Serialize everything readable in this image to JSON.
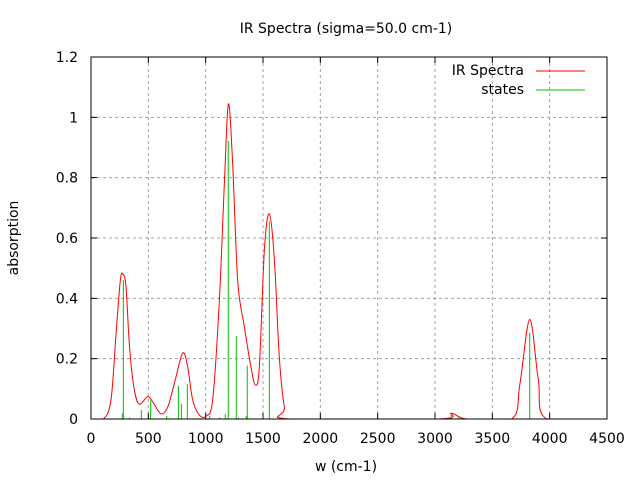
{
  "chart_data": {
    "type": "line",
    "title": "IR Spectra (sigma=50.0 cm-1)",
    "xlabel": "w (cm-1)",
    "ylabel": "absorption",
    "xlim": [
      0,
      4500
    ],
    "ylim": [
      0,
      1.2
    ],
    "xticks": [
      0,
      500,
      1000,
      1500,
      2000,
      2500,
      3000,
      3500,
      4000,
      4500
    ],
    "yticks": [
      0,
      0.2,
      0.4,
      0.6,
      0.8,
      1,
      1.2
    ],
    "grid": true,
    "legend_position": "top-right",
    "series": [
      {
        "name": "IR Spectra",
        "style": "line",
        "color": "#ff0000",
        "x": [
          0,
          108,
          174,
          218,
          256,
          279,
          305,
          334,
          369,
          416,
          494,
          538,
          610,
          669,
          727,
          799,
          843,
          887,
          945,
          1003,
          1061,
          1119,
          1163,
          1198,
          1235,
          1279,
          1337,
          1395,
          1433,
          1468,
          1512,
          1555,
          1599,
          1642,
          1686,
          1735,
          3029,
          3142,
          3276,
          3668,
          3741,
          3826,
          3901,
          3974,
          4500
        ],
        "y": [
          0,
          0,
          0.063,
          0.28,
          0.46,
          0.48,
          0.44,
          0.25,
          0.118,
          0.05,
          0.074,
          0.057,
          0.017,
          0.04,
          0.118,
          0.218,
          0.173,
          0.063,
          0.013,
          0.01,
          0.063,
          0.39,
          0.78,
          1.044,
          0.85,
          0.46,
          0.306,
          0.173,
          0.113,
          0.173,
          0.56,
          0.68,
          0.53,
          0.207,
          0.04,
          0,
          0,
          0.019,
          0,
          0,
          0.118,
          0.33,
          0.13,
          0,
          0
        ]
      },
      {
        "name": "states",
        "style": "impulses",
        "color": "#00c000",
        "x": [
          273,
          282,
          337,
          439,
          520,
          660,
          762,
          788,
          840,
          1035,
          1122,
          1171,
          1197,
          1267,
          1284,
          1354,
          1363,
          1503,
          1555,
          1642,
          3142,
          3206,
          3826
        ],
        "y": [
          0.019,
          0.46,
          0.005,
          0.03,
          0.061,
          0.01,
          0.11,
          0.05,
          0.116,
          0.01,
          0.005,
          0.017,
          0.922,
          0.275,
          0.005,
          0.01,
          0.177,
          0.013,
          0.655,
          0.008,
          0.019,
          0.005,
          0.286
        ]
      }
    ]
  }
}
